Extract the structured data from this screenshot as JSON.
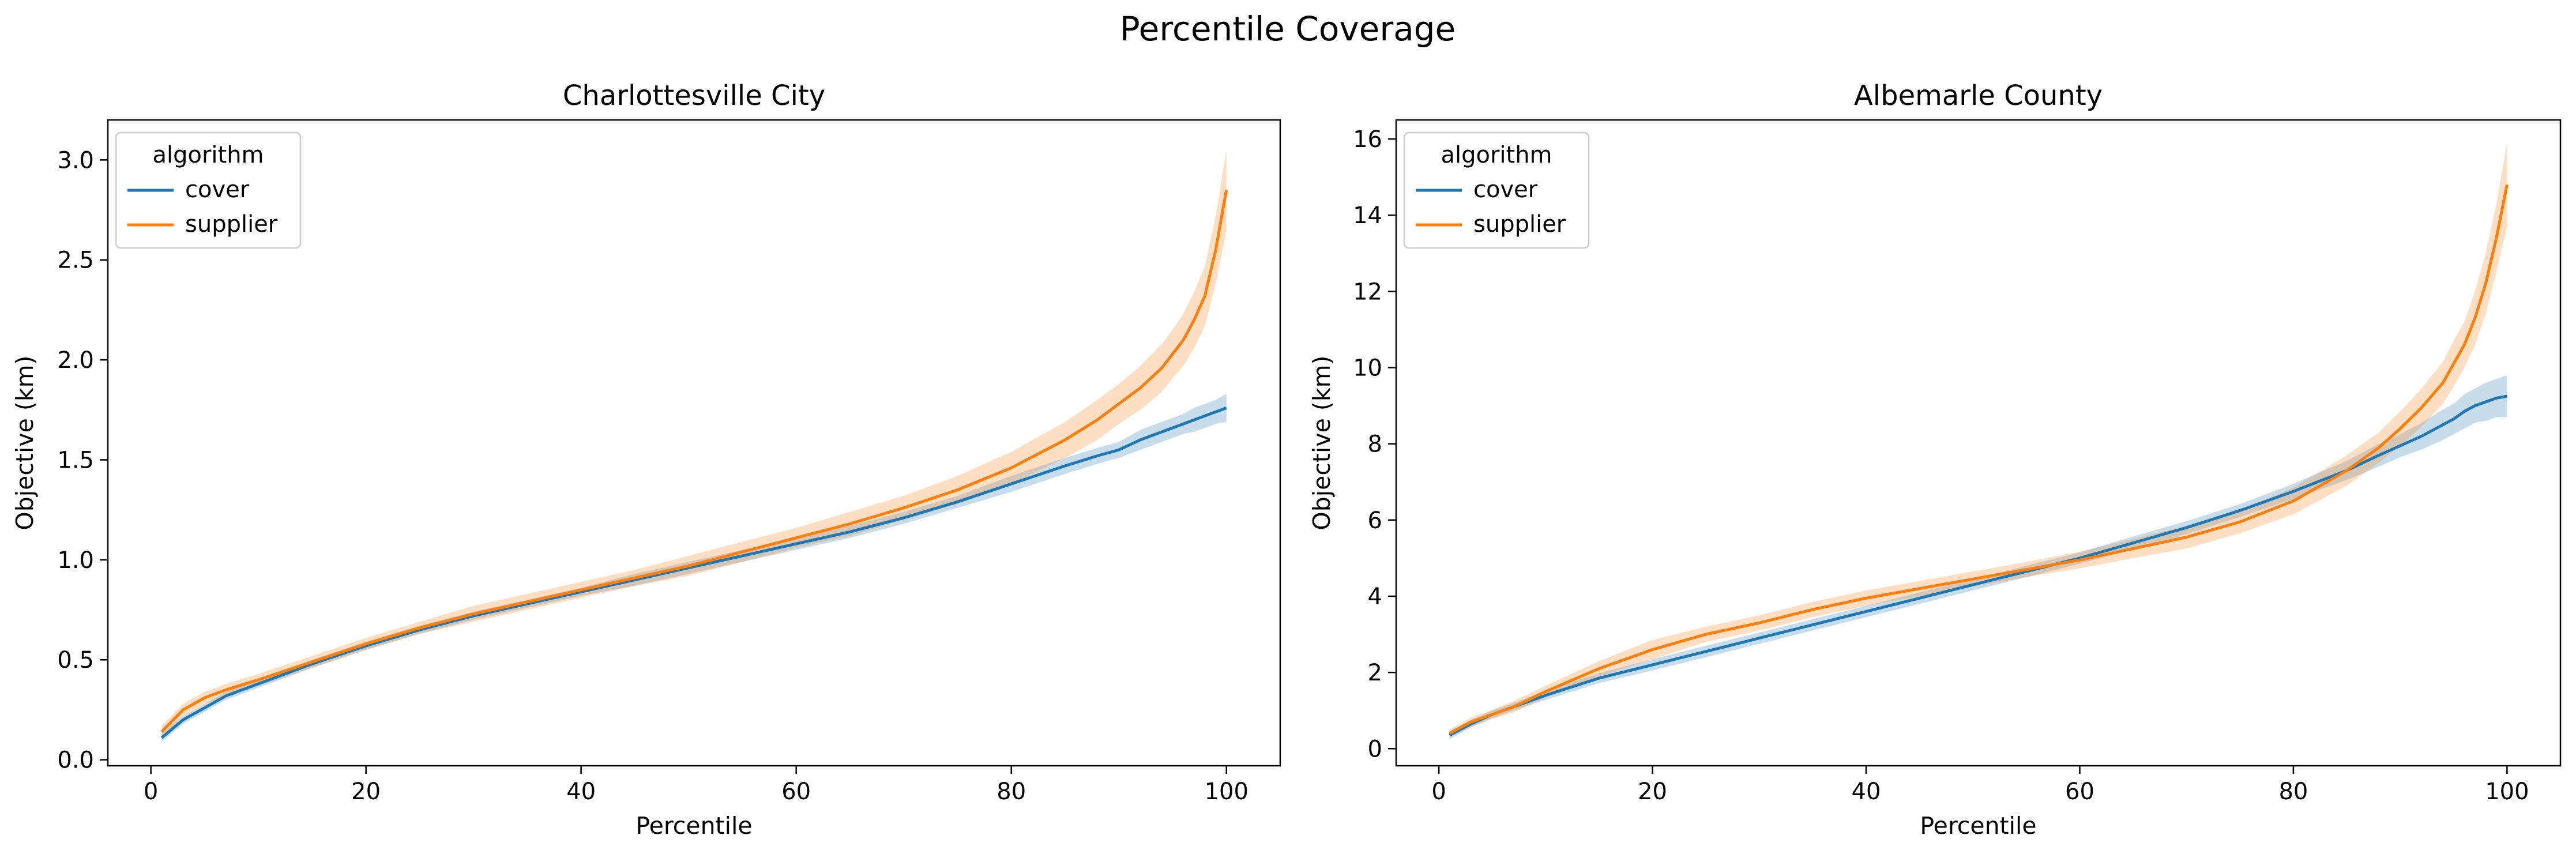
{
  "figure": {
    "title": "Percentile Coverage"
  },
  "colors": {
    "cover": "#1f77b4",
    "supplier": "#ff7f0e"
  },
  "chart_data": [
    {
      "type": "line",
      "title": "Charlottesville City",
      "xlabel": "Percentile",
      "ylabel": "Objective (km)",
      "xlim": [
        -4.0,
        105.0
      ],
      "ylim": [
        -0.03,
        3.2
      ],
      "xticks": [
        0,
        20,
        40,
        60,
        80,
        100
      ],
      "xtick_labels": [
        "0",
        "20",
        "40",
        "60",
        "80",
        "100"
      ],
      "yticks": [
        0.0,
        0.5,
        1.0,
        1.5,
        2.0,
        2.5,
        3.0
      ],
      "ytick_labels": [
        "0.0",
        "0.5",
        "1.0",
        "1.5",
        "2.0",
        "2.5",
        "3.0"
      ],
      "grid": false,
      "legend": {
        "title": "algorithm",
        "position": "upper left"
      },
      "x": [
        1,
        3,
        5,
        7,
        10,
        15,
        20,
        25,
        30,
        35,
        40,
        45,
        50,
        55,
        60,
        65,
        70,
        75,
        80,
        85,
        88,
        90,
        92,
        94,
        95,
        96,
        97,
        98,
        99,
        100
      ],
      "series": [
        {
          "name": "cover",
          "values": [
            0.11,
            0.2,
            0.26,
            0.32,
            0.38,
            0.48,
            0.57,
            0.65,
            0.72,
            0.78,
            0.84,
            0.9,
            0.96,
            1.02,
            1.08,
            1.14,
            1.21,
            1.29,
            1.38,
            1.47,
            1.52,
            1.55,
            1.6,
            1.64,
            1.66,
            1.68,
            1.7,
            1.72,
            1.74,
            1.76
          ],
          "band": [
            0.02,
            0.02,
            0.02,
            0.02,
            0.02,
            0.02,
            0.02,
            0.02,
            0.02,
            0.02,
            0.02,
            0.03,
            0.03,
            0.03,
            0.03,
            0.03,
            0.03,
            0.03,
            0.04,
            0.04,
            0.04,
            0.04,
            0.05,
            0.05,
            0.05,
            0.05,
            0.06,
            0.06,
            0.06,
            0.07
          ]
        },
        {
          "name": "supplier",
          "values": [
            0.14,
            0.25,
            0.31,
            0.35,
            0.4,
            0.49,
            0.58,
            0.66,
            0.73,
            0.79,
            0.85,
            0.91,
            0.97,
            1.04,
            1.11,
            1.18,
            1.26,
            1.35,
            1.46,
            1.6,
            1.7,
            1.78,
            1.86,
            1.96,
            2.03,
            2.1,
            2.2,
            2.32,
            2.55,
            2.85
          ],
          "band": [
            0.03,
            0.03,
            0.03,
            0.03,
            0.03,
            0.03,
            0.03,
            0.03,
            0.04,
            0.04,
            0.04,
            0.04,
            0.05,
            0.05,
            0.05,
            0.06,
            0.06,
            0.07,
            0.08,
            0.09,
            0.1,
            0.1,
            0.11,
            0.12,
            0.12,
            0.13,
            0.14,
            0.15,
            0.17,
            0.2
          ]
        }
      ]
    },
    {
      "type": "line",
      "title": "Albemarle County",
      "xlabel": "Percentile",
      "ylabel": "Objective (km)",
      "xlim": [
        -4.0,
        105.0
      ],
      "ylim": [
        -0.45,
        16.5
      ],
      "xticks": [
        0,
        20,
        40,
        60,
        80,
        100
      ],
      "xtick_labels": [
        "0",
        "20",
        "40",
        "60",
        "80",
        "100"
      ],
      "yticks": [
        0,
        2,
        4,
        6,
        8,
        10,
        12,
        14,
        16
      ],
      "ytick_labels": [
        "0",
        "2",
        "4",
        "6",
        "8",
        "10",
        "12",
        "14",
        "16"
      ],
      "grid": false,
      "legend": {
        "title": "algorithm",
        "position": "upper left"
      },
      "x": [
        1,
        3,
        5,
        7,
        10,
        15,
        20,
        25,
        30,
        35,
        40,
        45,
        50,
        55,
        60,
        65,
        70,
        75,
        80,
        85,
        88,
        90,
        92,
        94,
        95,
        96,
        97,
        98,
        99,
        100
      ],
      "series": [
        {
          "name": "cover",
          "values": [
            0.35,
            0.65,
            0.9,
            1.1,
            1.4,
            1.85,
            2.2,
            2.55,
            2.9,
            3.25,
            3.6,
            3.95,
            4.3,
            4.65,
            5.0,
            5.4,
            5.8,
            6.25,
            6.75,
            7.3,
            7.7,
            7.95,
            8.2,
            8.5,
            8.65,
            8.85,
            9.0,
            9.1,
            9.2,
            9.25
          ],
          "band": [
            0.1,
            0.1,
            0.1,
            0.1,
            0.12,
            0.13,
            0.15,
            0.15,
            0.15,
            0.15,
            0.15,
            0.15,
            0.15,
            0.15,
            0.15,
            0.17,
            0.17,
            0.17,
            0.2,
            0.25,
            0.3,
            0.3,
            0.35,
            0.4,
            0.4,
            0.45,
            0.45,
            0.5,
            0.5,
            0.55
          ]
        },
        {
          "name": "supplier",
          "values": [
            0.4,
            0.7,
            0.9,
            1.1,
            1.5,
            2.1,
            2.6,
            3.0,
            3.3,
            3.65,
            3.95,
            4.2,
            4.45,
            4.7,
            4.95,
            5.25,
            5.55,
            5.95,
            6.5,
            7.3,
            7.9,
            8.4,
            8.95,
            9.6,
            10.1,
            10.6,
            11.3,
            12.2,
            13.4,
            14.8
          ],
          "band": [
            0.1,
            0.12,
            0.12,
            0.15,
            0.15,
            0.2,
            0.25,
            0.2,
            0.2,
            0.2,
            0.2,
            0.2,
            0.2,
            0.2,
            0.22,
            0.25,
            0.3,
            0.3,
            0.35,
            0.4,
            0.4,
            0.45,
            0.5,
            0.55,
            0.6,
            0.6,
            0.7,
            0.8,
            0.9,
            1.1
          ]
        }
      ]
    }
  ]
}
